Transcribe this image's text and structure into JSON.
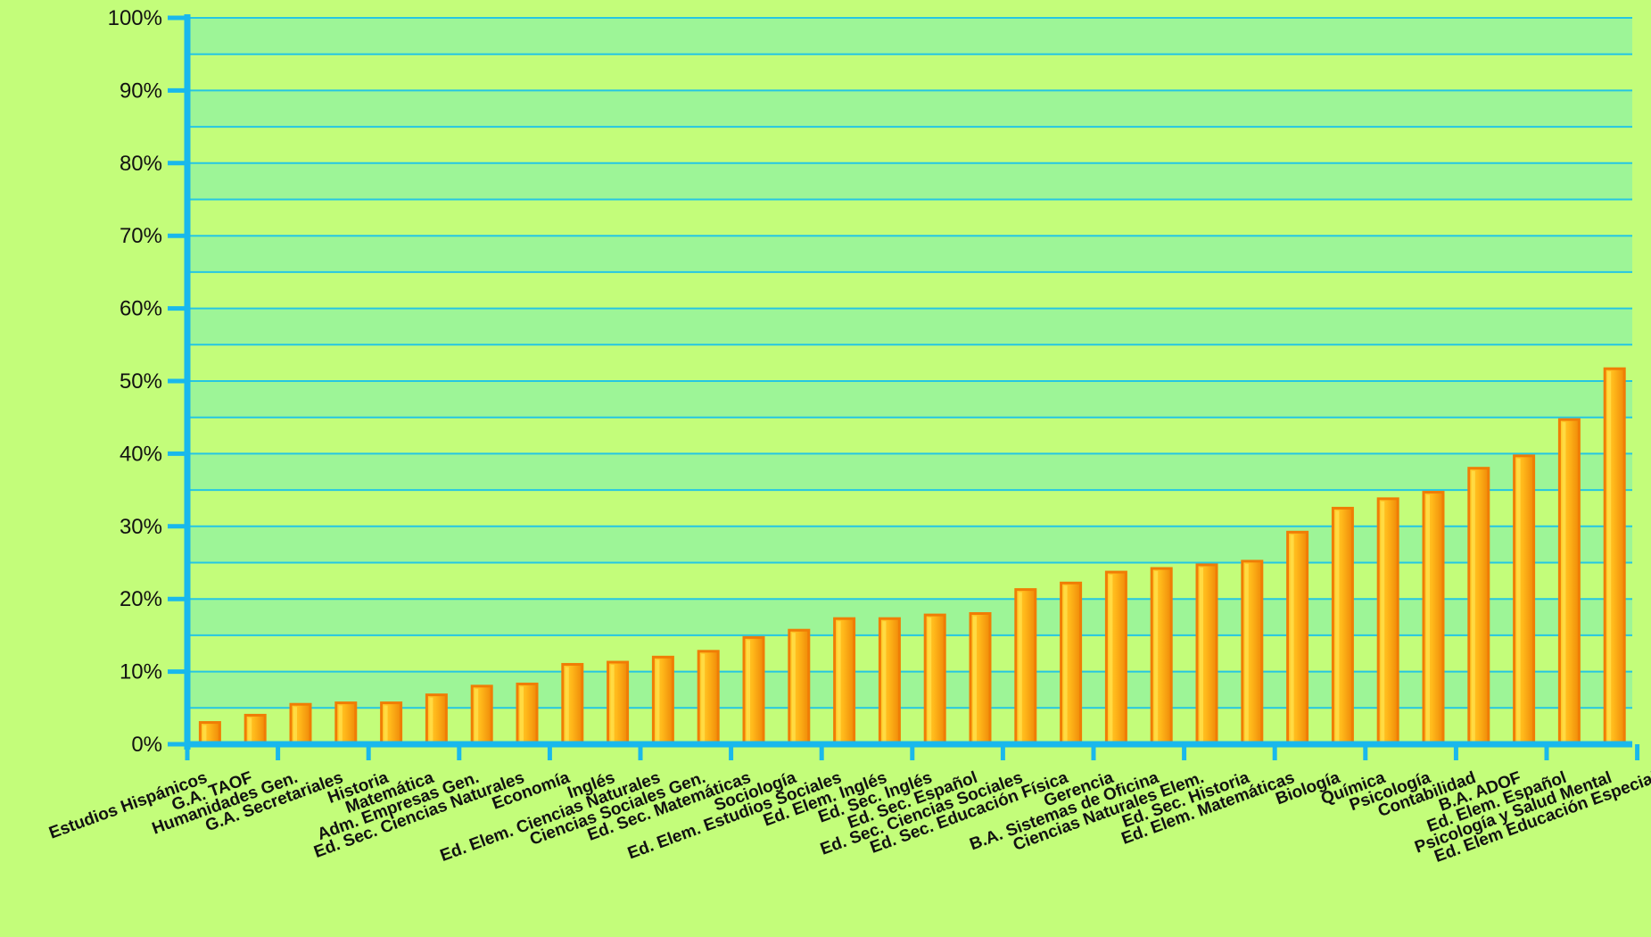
{
  "chart_data": {
    "type": "bar",
    "title": "",
    "xlabel": "",
    "ylabel": "",
    "ylim": [
      0,
      100
    ],
    "y_ticks": [
      "0%",
      "10%",
      "20%",
      "30%",
      "40%",
      "50%",
      "60%",
      "70%",
      "80%",
      "90%",
      "100%"
    ],
    "grid": true,
    "legend": "none",
    "categories": [
      "Estudios Hispánicos",
      "G.A. TAOF",
      "Humanidades Gen.",
      "G.A. Secretariales",
      "Historia",
      "Matemática",
      "Adm. Empresas Gen.",
      "Ed. Sec. Ciencias Naturales",
      "Economía",
      "Inglés",
      "Ed. Elem. Ciencias Naturales",
      "Ciencias Sociales Gen.",
      "Ed. Sec. Matemáticas",
      "Sociología",
      "Ed. Elem. Estudios Sociales",
      "Ed. Elem. Inglés",
      "Ed. Sec. Inglés",
      "Ed. Sec. Español",
      "Ed. Sec. Ciencias Sociales",
      "Ed. Sec. Educación Física",
      "Gerencia",
      "B.A. Sistemas de Oficina",
      "Ciencias Naturales Elem.",
      "Ed. Sec. Historia",
      "Ed. Elem. Matemáticas",
      "Biología",
      "Química",
      "Psicología",
      "Contabilidad",
      "B.A. ADOF",
      "Ed. Elem. Español",
      "Psicología y Salud Mental",
      "Ed. Elem Educación Especial"
    ],
    "values": [
      3,
      4,
      5.5,
      5.7,
      5.7,
      6.8,
      8,
      8.3,
      11,
      11.3,
      12,
      12.8,
      14.7,
      15.7,
      17.3,
      17.3,
      17.8,
      18,
      21.3,
      22.2,
      23.7,
      24.2,
      24.7,
      25.2,
      29.2,
      32.5,
      33.8,
      34.7,
      38,
      39.7,
      44.7,
      51.7,
      0
    ]
  },
  "colors": {
    "background": "#c3fd7a",
    "band": "#9df597",
    "grid": "#25c6e3",
    "axis": "#19b8ec",
    "bar_fill": "#ffa90f",
    "bar_edge": "#f07d05",
    "bar_highlight": "#ffe04a"
  }
}
